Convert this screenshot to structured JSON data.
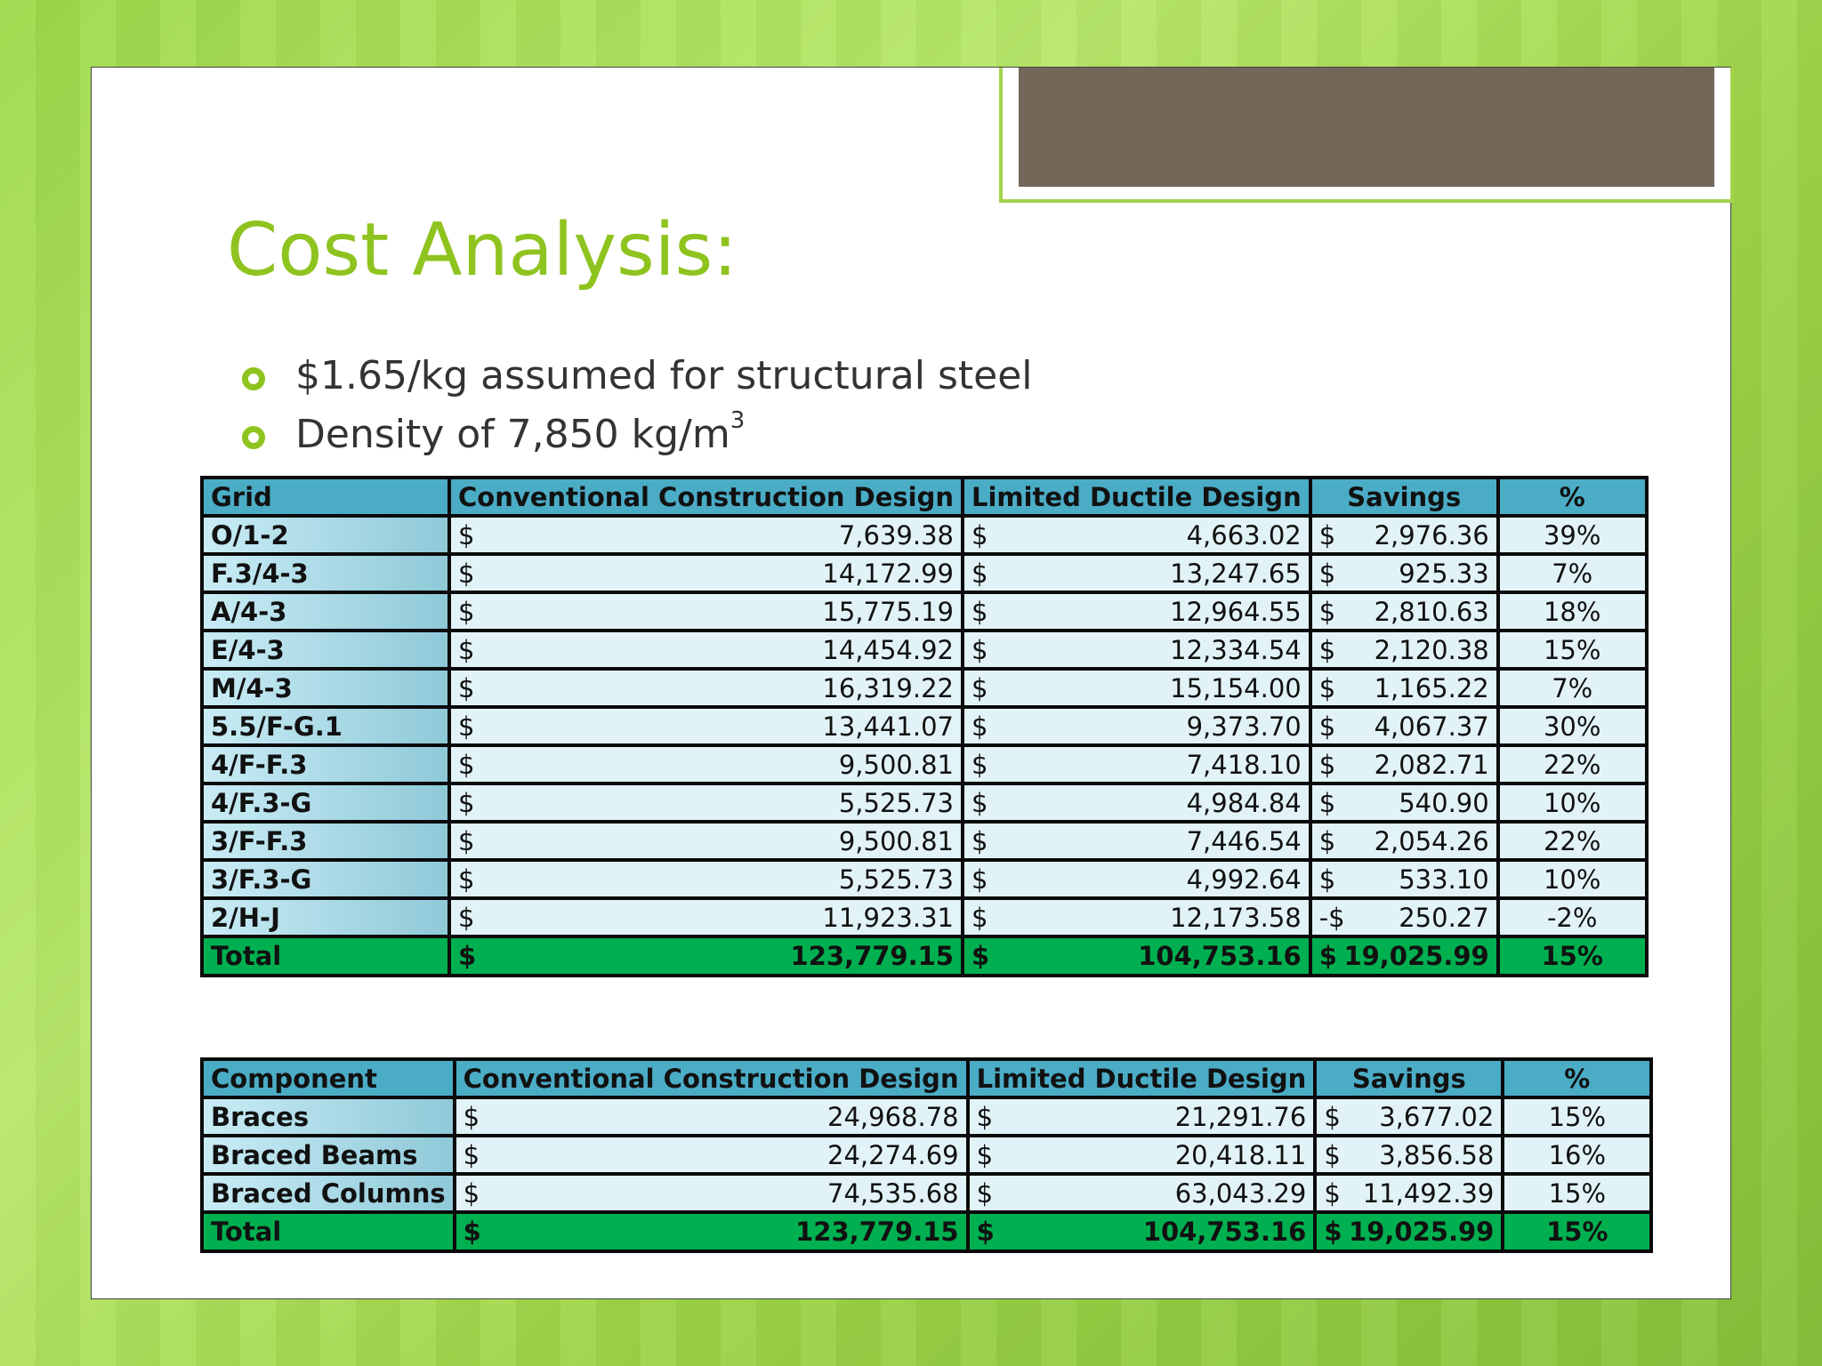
{
  "title": "Cost Analysis:",
  "bullets": [
    {
      "text": "$1.65/kg assumed for structural steel"
    },
    {
      "text": "Density of 7,850 kg/m",
      "sup": "3"
    }
  ],
  "table1": {
    "headers": [
      "Grid",
      "Conventional Construction Design",
      "Limited Ductile Design",
      "Savings",
      "%"
    ],
    "rows": [
      {
        "label": "O/1-2",
        "conv": "7,639.38",
        "ldd": "4,663.02",
        "sav_sign": "$",
        "sav": "2,976.36",
        "pct": "39%"
      },
      {
        "label": "F.3/4-3",
        "conv": "14,172.99",
        "ldd": "13,247.65",
        "sav_sign": "$",
        "sav": "925.33",
        "pct": "7%"
      },
      {
        "label": "A/4-3",
        "conv": "15,775.19",
        "ldd": "12,964.55",
        "sav_sign": "$",
        "sav": "2,810.63",
        "pct": "18%"
      },
      {
        "label": "E/4-3",
        "conv": "14,454.92",
        "ldd": "12,334.54",
        "sav_sign": "$",
        "sav": "2,120.38",
        "pct": "15%"
      },
      {
        "label": "M/4-3",
        "conv": "16,319.22",
        "ldd": "15,154.00",
        "sav_sign": "$",
        "sav": "1,165.22",
        "pct": "7%"
      },
      {
        "label": "5.5/F-G.1",
        "conv": "13,441.07",
        "ldd": "9,373.70",
        "sav_sign": "$",
        "sav": "4,067.37",
        "pct": "30%"
      },
      {
        "label": "4/F-F.3",
        "conv": "9,500.81",
        "ldd": "7,418.10",
        "sav_sign": "$",
        "sav": "2,082.71",
        "pct": "22%"
      },
      {
        "label": "4/F.3-G",
        "conv": "5,525.73",
        "ldd": "4,984.84",
        "sav_sign": "$",
        "sav": "540.90",
        "pct": "10%"
      },
      {
        "label": "3/F-F.3",
        "conv": "9,500.81",
        "ldd": "7,446.54",
        "sav_sign": "$",
        "sav": "2,054.26",
        "pct": "22%"
      },
      {
        "label": "3/F.3-G",
        "conv": "5,525.73",
        "ldd": "4,992.64",
        "sav_sign": "$",
        "sav": "533.10",
        "pct": "10%"
      },
      {
        "label": "2/H-J",
        "conv": "11,923.31",
        "ldd": "12,173.58",
        "sav_sign": "-$",
        "sav": "250.27",
        "pct": "-2%"
      }
    ],
    "total": {
      "label": "Total",
      "conv": "123,779.15",
      "ldd": "104,753.16",
      "sav_sign": "$",
      "sav": "19,025.99",
      "pct": "15%"
    }
  },
  "table2": {
    "headers": [
      "Component",
      "Conventional Construction Design",
      "Limited Ductile Design",
      "Savings",
      "%"
    ],
    "rows": [
      {
        "label": "Braces",
        "conv": "24,968.78",
        "ldd": "21,291.76",
        "sav_sign": "$",
        "sav": "3,677.02",
        "pct": "15%"
      },
      {
        "label": "Braced Beams",
        "conv": "24,274.69",
        "ldd": "20,418.11",
        "sav_sign": "$",
        "sav": "3,856.58",
        "pct": "16%"
      },
      {
        "label": "Braced Columns",
        "conv": "74,535.68",
        "ldd": "63,043.29",
        "sav_sign": "$",
        "sav": "11,492.39",
        "pct": "15%"
      }
    ],
    "total": {
      "label": "Total",
      "conv": "123,779.15",
      "ldd": "104,753.16",
      "sav_sign": "$",
      "sav": "19,025.99",
      "pct": "15%"
    }
  },
  "currency_symbol": "$",
  "colors": {
    "title": "#8fc31f",
    "header": "#4bacc6",
    "total": "#00b050"
  }
}
